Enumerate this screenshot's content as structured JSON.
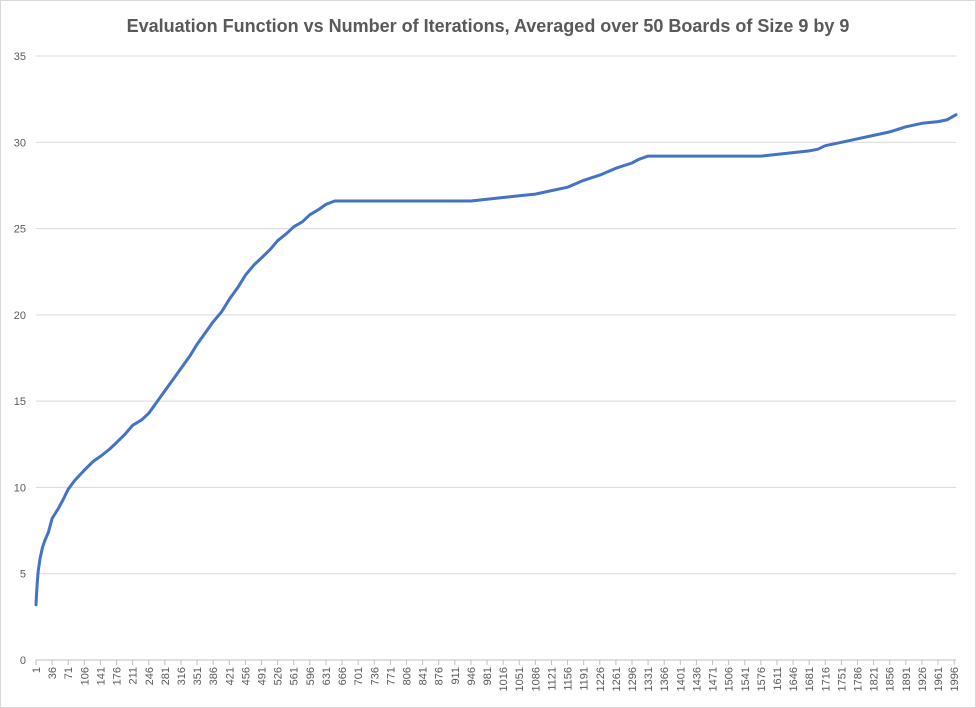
{
  "chart_data": {
    "type": "line",
    "title": "Evaluation Function vs Number of Iterations, Averaged over 50 Boards of Size 9 by 9",
    "xlabel": "",
    "ylabel": "",
    "ylim": [
      0,
      35
    ],
    "y_ticks": [
      0,
      5,
      10,
      15,
      20,
      25,
      30,
      35
    ],
    "x_range": [
      1,
      2000
    ],
    "x_tick_labels": [
      "1",
      "36",
      "71",
      "106",
      "141",
      "176",
      "211",
      "246",
      "281",
      "316",
      "351",
      "386",
      "421",
      "456",
      "491",
      "526",
      "561",
      "596",
      "631",
      "666",
      "701",
      "736",
      "771",
      "806",
      "841",
      "876",
      "911",
      "946",
      "981",
      "1016",
      "1051",
      "1086",
      "1121",
      "1156",
      "1191",
      "1226",
      "1261",
      "1296",
      "1331",
      "1366",
      "1401",
      "1436",
      "1471",
      "1506",
      "1541",
      "1576",
      "1611",
      "1646",
      "1681",
      "1716",
      "1751",
      "1786",
      "1821",
      "1856",
      "1891",
      "1926",
      "1961",
      "1996"
    ],
    "grid": "horizontal",
    "legend": "none",
    "line_color": "#4472c4",
    "series": [
      {
        "x": [
          1,
          2,
          4,
          6,
          10,
          15,
          20,
          28,
          36,
          50,
          60,
          71,
          85,
          106,
          125,
          141,
          160,
          176,
          195,
          211,
          230,
          246,
          265,
          281,
          300,
          316,
          335,
          351,
          370,
          386,
          405,
          421,
          440,
          456,
          475,
          491,
          510,
          526,
          545,
          561,
          580,
          596,
          615,
          631,
          650,
          660,
          680,
          720,
          800,
          900,
          946,
          981,
          1016,
          1051,
          1086,
          1121,
          1156,
          1191,
          1226,
          1261,
          1296,
          1310,
          1331,
          1400,
          1500,
          1576,
          1611,
          1646,
          1681,
          1700,
          1716,
          1751,
          1786,
          1821,
          1856,
          1891,
          1926,
          1961,
          1980,
          2000
        ],
        "y": [
          3.2,
          3.8,
          4.6,
          5.2,
          5.9,
          6.5,
          6.9,
          7.4,
          8.2,
          8.8,
          9.3,
          9.9,
          10.4,
          11.0,
          11.5,
          11.8,
          12.2,
          12.6,
          13.1,
          13.6,
          13.9,
          14.3,
          15.0,
          15.6,
          16.3,
          16.9,
          17.6,
          18.3,
          19.0,
          19.6,
          20.2,
          20.9,
          21.6,
          22.3,
          22.9,
          23.3,
          23.8,
          24.3,
          24.7,
          25.1,
          25.4,
          25.8,
          26.1,
          26.4,
          26.6,
          26.6,
          26.6,
          26.6,
          26.6,
          26.6,
          26.6,
          26.7,
          26.8,
          26.9,
          27.0,
          27.2,
          27.4,
          27.8,
          28.1,
          28.5,
          28.8,
          29.0,
          29.2,
          29.2,
          29.2,
          29.2,
          29.3,
          29.4,
          29.5,
          29.6,
          29.8,
          30.0,
          30.2,
          30.4,
          30.6,
          30.9,
          31.1,
          31.2,
          31.3,
          31.6
        ]
      }
    ]
  }
}
